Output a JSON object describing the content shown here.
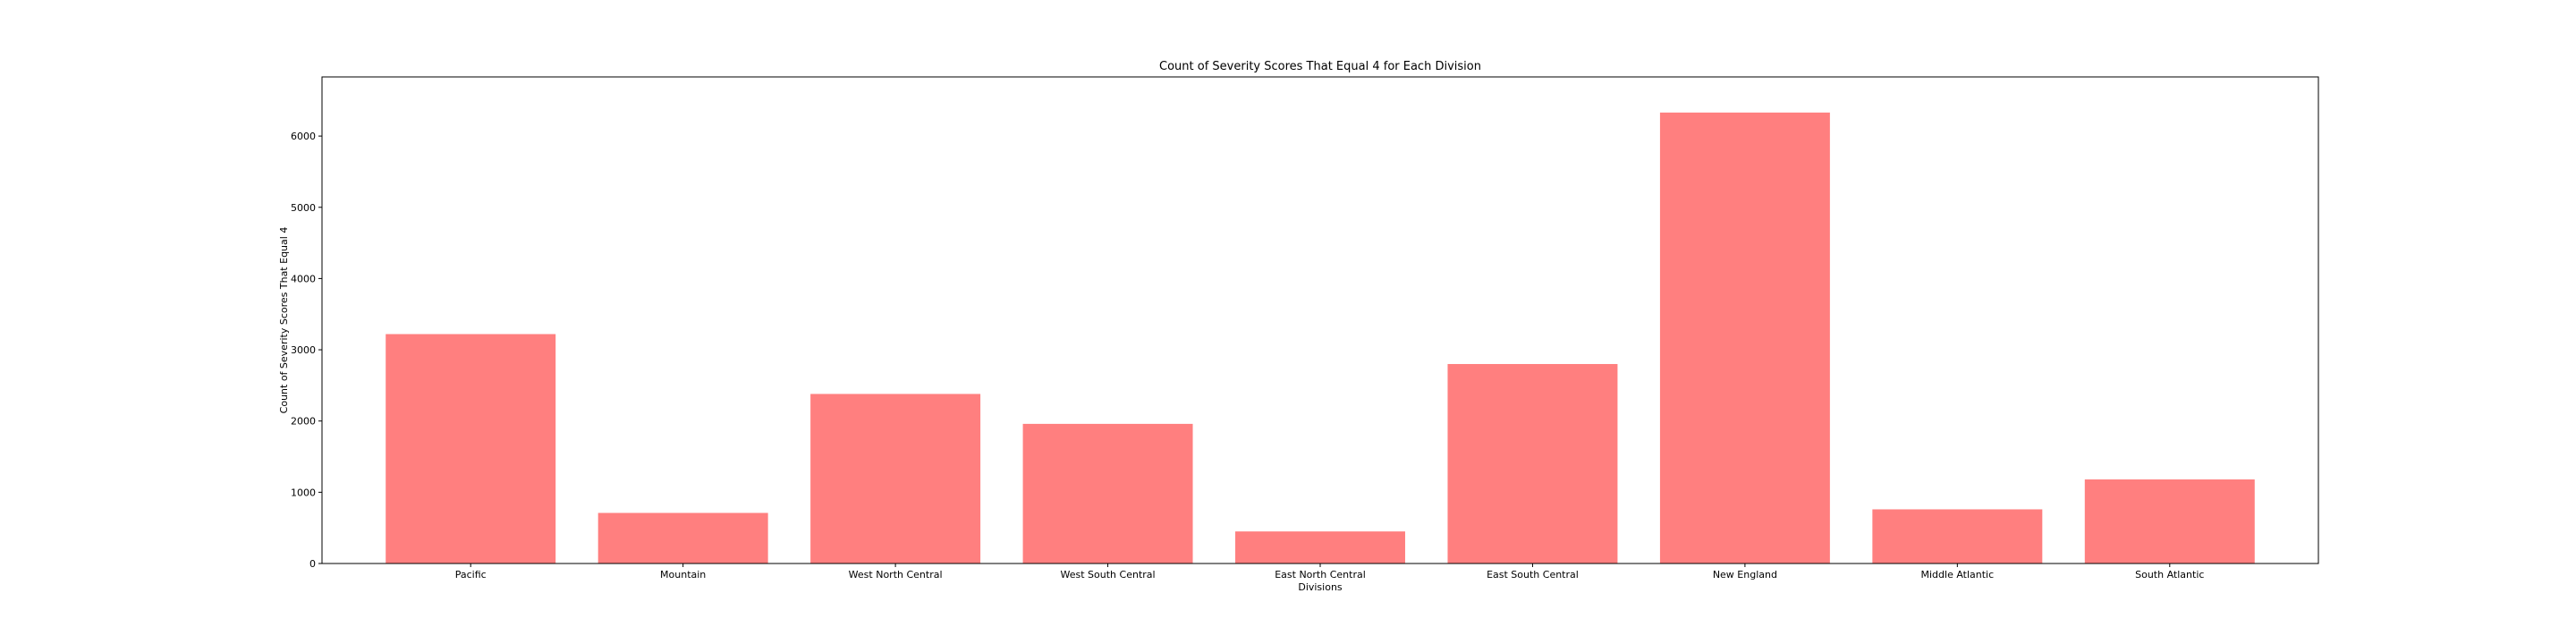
{
  "chart_data": {
    "type": "bar",
    "title": "Count of Severity Scores That Equal 4 for Each Division",
    "xlabel": "Divisions",
    "ylabel": "Count of Severity Scores That Equal 4",
    "categories": [
      "Pacific",
      "Mountain",
      "West North Central",
      "West South Central",
      "East North Central",
      "East South Central",
      "New England",
      "Middle Atlantic",
      "South Atlantic"
    ],
    "values": [
      3220,
      710,
      2380,
      1960,
      450,
      2800,
      6330,
      760,
      1180
    ],
    "ylim": [
      0,
      6830
    ],
    "yticks": [
      0,
      1000,
      2000,
      3000,
      4000,
      5000,
      6000
    ],
    "grid": false,
    "bar_color": "#ff7f7f",
    "axis_color": "#000000"
  }
}
